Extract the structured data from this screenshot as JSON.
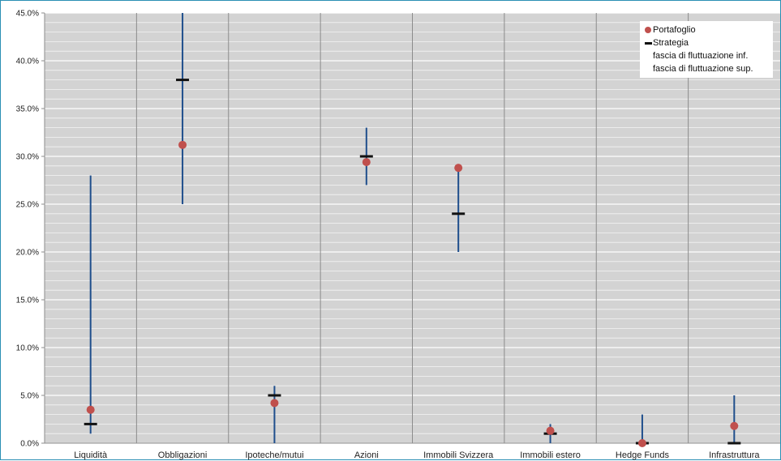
{
  "chart_data": {
    "type": "scatter",
    "categories": [
      "Liquidità",
      "Obbligazioni",
      "Ipoteche/mutui",
      "Azioni",
      "Immobili Svizzera",
      "Immobili estero",
      "Hedge Funds",
      "Infrastruttura"
    ],
    "ylim": [
      0,
      45
    ],
    "yticks": [
      0,
      5,
      10,
      15,
      20,
      25,
      30,
      35,
      40,
      45
    ],
    "ytick_labels": [
      "0.0%",
      "5.0%",
      "10.0%",
      "15.0%",
      "20.0%",
      "25.0%",
      "30.0%",
      "35.0%",
      "40.0%",
      "45.0%"
    ],
    "grid": true,
    "legend_position": "top-right",
    "series": [
      {
        "name": "Portafoglio",
        "marker": "circle",
        "color": "#c0504d",
        "values": [
          3.5,
          31.2,
          4.2,
          29.4,
          28.8,
          1.3,
          0.0,
          1.8
        ]
      },
      {
        "name": "Strategia",
        "marker": "dash",
        "color": "#111111",
        "values": [
          2.0,
          38.0,
          5.0,
          30.0,
          24.0,
          1.0,
          0.0,
          0.0
        ]
      },
      {
        "name": "fascia di fluttuazione inf.",
        "color": "#1f4e8c",
        "values": [
          1.0,
          25.0,
          0.0,
          27.0,
          20.0,
          0.0,
          0.0,
          0.0
        ]
      },
      {
        "name": "fascia di fluttuazione sup.",
        "color": "#1f4e8c",
        "values": [
          28.0,
          45.0,
          6.0,
          33.0,
          29.0,
          2.0,
          3.0,
          5.0
        ]
      }
    ]
  }
}
